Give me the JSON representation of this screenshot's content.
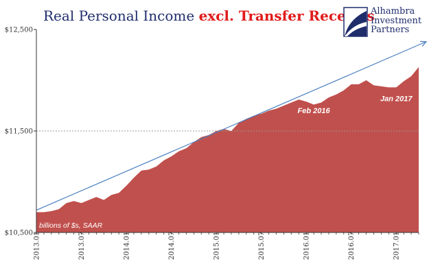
{
  "chart_data": {
    "type": "area",
    "title_part1": "Real Personal Income",
    "title_part2": "excl. Transfer Receipts",
    "unit_note": "billions of $s, SAAR",
    "ylim": [
      10500,
      12500
    ],
    "y_ticks": [
      "$10,500",
      "$11,500",
      "$12,500"
    ],
    "y_tick_values": [
      10500,
      11500,
      12500
    ],
    "x_ticks": [
      "2013.01",
      "2013.07",
      "2014.01",
      "2014.07",
      "2015.01",
      "2015.07",
      "2016.01",
      "2016.07",
      "2017.01"
    ],
    "x_tick_index": [
      0,
      6,
      12,
      18,
      24,
      30,
      36,
      42,
      48
    ],
    "n_points": 52,
    "gridlines": "horizontal dashed at $11,500",
    "series": [
      {
        "name": "",
        "color": "#c0504d",
        "values": [
          10700,
          10700,
          10710,
          10730,
          10790,
          10810,
          10790,
          10820,
          10850,
          10820,
          10870,
          10890,
          10960,
          11040,
          11110,
          11120,
          11150,
          11210,
          11250,
          11300,
          11330,
          11390,
          11440,
          11460,
          11500,
          11520,
          11500,
          11580,
          11620,
          11650,
          11670,
          11700,
          11720,
          11750,
          11780,
          11810,
          11790,
          11760,
          11780,
          11830,
          11860,
          11900,
          11960,
          11960,
          12000,
          11950,
          11940,
          11930,
          11930,
          11990,
          12040,
          12130
        ]
      }
    ],
    "trendline": {
      "color": "#4a7fc1",
      "start": {
        "x": "2013.01",
        "y": 10720
      },
      "end": {
        "x": "2017.05",
        "y": 12380
      }
    },
    "annotations": [
      {
        "text": "Feb 2016",
        "x": "2016.02",
        "y": 11810
      },
      {
        "text": "Jan 2017",
        "x": "2017.01",
        "y": 11930
      }
    ]
  },
  "logo": {
    "line1": "Alhambra",
    "line2": "Investment",
    "line3": "Partners"
  }
}
